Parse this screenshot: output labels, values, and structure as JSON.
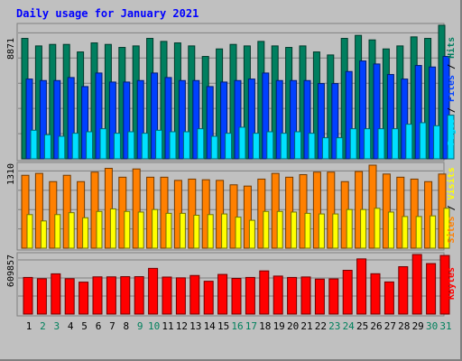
{
  "title": "Daily usage for January 2021",
  "colors": {
    "hits": "#007f5f",
    "files": "#0040ff",
    "pages": "#00e0ff",
    "visits": "#ffff00",
    "sites": "#ff8000",
    "kbytes": "#ff0000",
    "weekday": "#000000",
    "weekend": "#00805c"
  },
  "chart_data": [
    {
      "type": "bar",
      "panel": "top",
      "title": "Daily usage for January 2021",
      "ymax_label": "8871",
      "ylim": [
        0,
        8871
      ],
      "categories": [
        "1",
        "2",
        "3",
        "4",
        "5",
        "6",
        "7",
        "8",
        "9",
        "10",
        "11",
        "12",
        "13",
        "14",
        "15",
        "16",
        "17",
        "18",
        "19",
        "20",
        "21",
        "22",
        "23",
        "24",
        "25",
        "26",
        "27",
        "28",
        "29",
        "30",
        "31"
      ],
      "weekend_days": [
        "2",
        "3",
        "9",
        "10",
        "16",
        "17",
        "23",
        "24",
        "30",
        "31"
      ],
      "legend": [
        {
          "text": "Pages",
          "color": "#00e0ff"
        },
        {
          "text": " / ",
          "color": "#000000"
        },
        {
          "text": "Files",
          "color": "#0040ff"
        },
        {
          "text": " / ",
          "color": "#000000"
        },
        {
          "text": "Hits",
          "color": "#007f5f"
        }
      ],
      "series": [
        {
          "name": "Hits",
          "values": [
            8000,
            7500,
            7600,
            7600,
            7100,
            7700,
            7600,
            7400,
            7500,
            8000,
            7800,
            7700,
            7500,
            6800,
            7300,
            7600,
            7500,
            7800,
            7500,
            7400,
            7500,
            7100,
            6900,
            8000,
            8200,
            7900,
            7300,
            7500,
            8100,
            8000,
            8871
          ]
        },
        {
          "name": "Files",
          "values": [
            5300,
            5200,
            5200,
            5400,
            4800,
            5700,
            5100,
            5100,
            5200,
            5700,
            5400,
            5200,
            5200,
            4800,
            5100,
            5200,
            5300,
            5700,
            5200,
            5200,
            5200,
            5000,
            5000,
            5800,
            6500,
            6300,
            5600,
            5300,
            6200,
            6100,
            6800
          ]
        },
        {
          "name": "Pages",
          "values": [
            1900,
            1600,
            1500,
            1700,
            1800,
            2000,
            1700,
            1800,
            1700,
            1900,
            1800,
            1800,
            2000,
            1500,
            1700,
            2100,
            1700,
            1800,
            1700,
            1800,
            1700,
            1400,
            1400,
            2000,
            2000,
            2000,
            2000,
            2300,
            2400,
            2200,
            2900
          ]
        }
      ]
    },
    {
      "type": "bar",
      "panel": "middle",
      "ymax_label": "1310",
      "ylim": [
        0,
        1310
      ],
      "categories": [
        "1",
        "2",
        "3",
        "4",
        "5",
        "6",
        "7",
        "8",
        "9",
        "10",
        "11",
        "12",
        "13",
        "14",
        "15",
        "16",
        "17",
        "18",
        "19",
        "20",
        "21",
        "22",
        "23",
        "24",
        "25",
        "26",
        "27",
        "28",
        "29",
        "30",
        "31"
      ],
      "legend": [
        {
          "text": "Sites",
          "color": "#ff8000"
        },
        {
          "text": " / ",
          "color": "#000000"
        },
        {
          "text": "Visits",
          "color": "#ffff00"
        }
      ],
      "series": [
        {
          "name": "Sites",
          "values": [
            1150,
            1180,
            1050,
            1150,
            1050,
            1200,
            1260,
            1120,
            1250,
            1120,
            1120,
            1070,
            1090,
            1080,
            1070,
            1000,
            980,
            1090,
            1180,
            1120,
            1160,
            1200,
            1200,
            1050,
            1210,
            1310,
            1170,
            1120,
            1090,
            1050,
            1170
          ]
        },
        {
          "name": "Visits",
          "values": [
            530,
            430,
            530,
            560,
            480,
            580,
            620,
            580,
            570,
            610,
            550,
            550,
            520,
            530,
            540,
            490,
            440,
            580,
            580,
            570,
            550,
            540,
            540,
            610,
            610,
            630,
            570,
            500,
            500,
            510,
            630
          ]
        }
      ]
    },
    {
      "type": "bar",
      "panel": "bottom",
      "ymax_label": "609857",
      "ylim": [
        0,
        609857
      ],
      "categories": [
        "1",
        "2",
        "3",
        "4",
        "5",
        "6",
        "7",
        "8",
        "9",
        "10",
        "11",
        "12",
        "13",
        "14",
        "15",
        "16",
        "17",
        "18",
        "19",
        "20",
        "21",
        "22",
        "23",
        "24",
        "25",
        "26",
        "27",
        "28",
        "29",
        "30",
        "31"
      ],
      "legend": [
        {
          "text": "KBytes",
          "color": "#ff0000"
        }
      ],
      "series": [
        {
          "name": "KBytes",
          "values": [
            375000,
            362000,
            412000,
            362000,
            327000,
            381000,
            381000,
            383000,
            383000,
            468000,
            379000,
            371000,
            395000,
            336000,
            406000,
            365000,
            375000,
            442000,
            389000,
            375000,
            380000,
            358000,
            360000,
            448000,
            565000,
            413000,
            329000,
            485000,
            609857,
            517000,
            600000
          ]
        }
      ]
    }
  ]
}
